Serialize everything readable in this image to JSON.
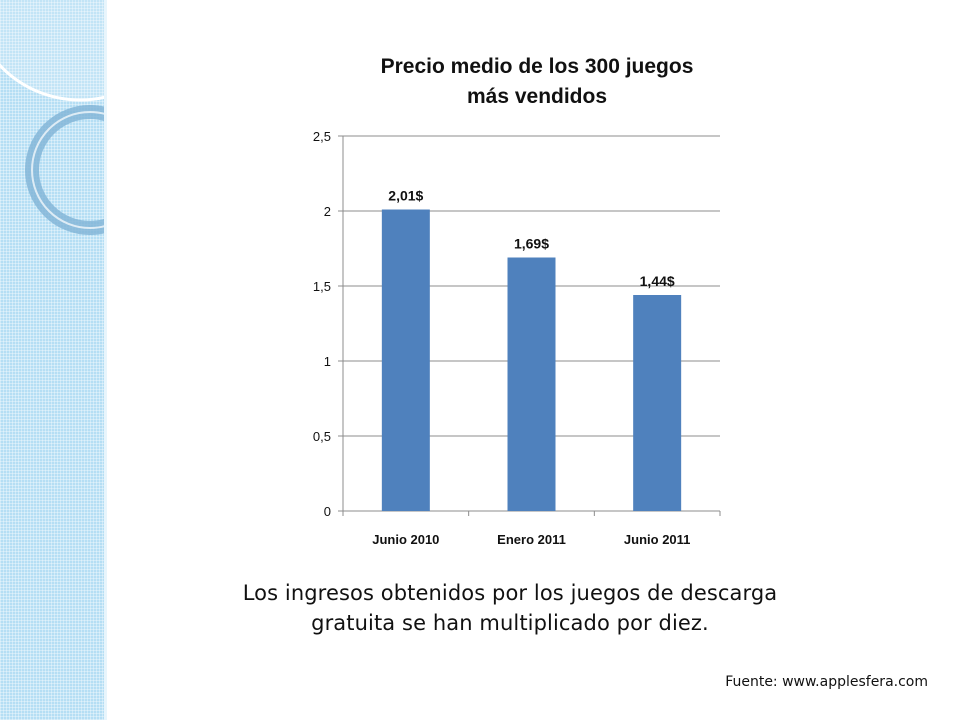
{
  "slide": {
    "caption": "Los ingresos obtenidos por los juegos de descarga gratuita se han multiplicado por diez.",
    "source": "Fuente: www.applesfera.com",
    "colors": {
      "band": "#b5def4",
      "bar": "#4f81bd",
      "grid": "#888888"
    }
  },
  "chart_data": {
    "type": "bar",
    "title": "Precio medio de los 300 juegos más vendidos",
    "title_lines": [
      "Precio medio de los 300 juegos",
      "más vendidos"
    ],
    "categories": [
      "Junio 2010",
      "Enero 2011",
      "Junio 2011"
    ],
    "values": [
      2.01,
      1.69,
      1.44
    ],
    "data_labels": [
      "2,01$",
      "1,69$",
      "1,44$"
    ],
    "ylim": [
      0,
      2.5
    ],
    "yticks": [
      0,
      0.5,
      1,
      1.5,
      2,
      2.5
    ],
    "ytick_labels": [
      "0",
      "0,5",
      "1",
      "1,5",
      "2",
      "2,5"
    ],
    "grid": true,
    "legend": "none",
    "xlabel": "",
    "ylabel": ""
  }
}
